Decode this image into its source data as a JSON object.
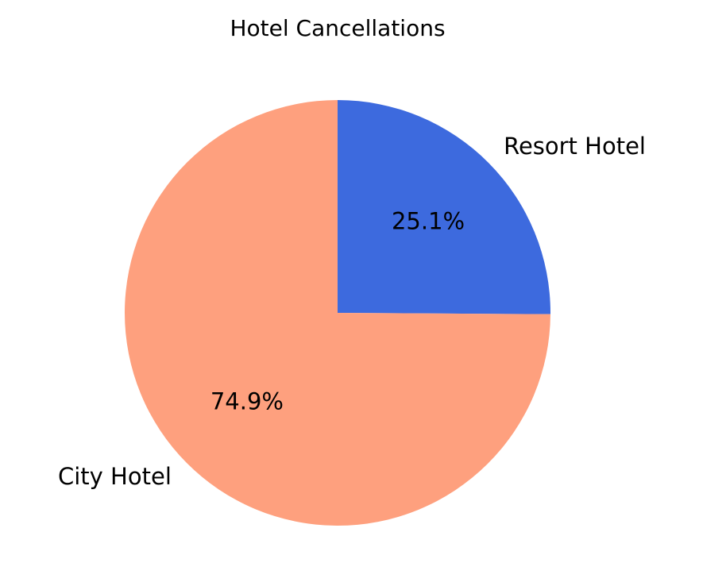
{
  "chart_data": {
    "type": "pie",
    "title": "Hotel Cancellations",
    "slices": [
      {
        "label": "Resort Hotel",
        "percent": 25.1,
        "pct_label": "25.1%",
        "color": "#3d6ade"
      },
      {
        "label": "City Hotel",
        "percent": 74.9,
        "pct_label": "74.9%",
        "color": "#fea07e"
      }
    ],
    "start_angle_deg": 90,
    "direction": "clockwise",
    "legend": "none"
  }
}
